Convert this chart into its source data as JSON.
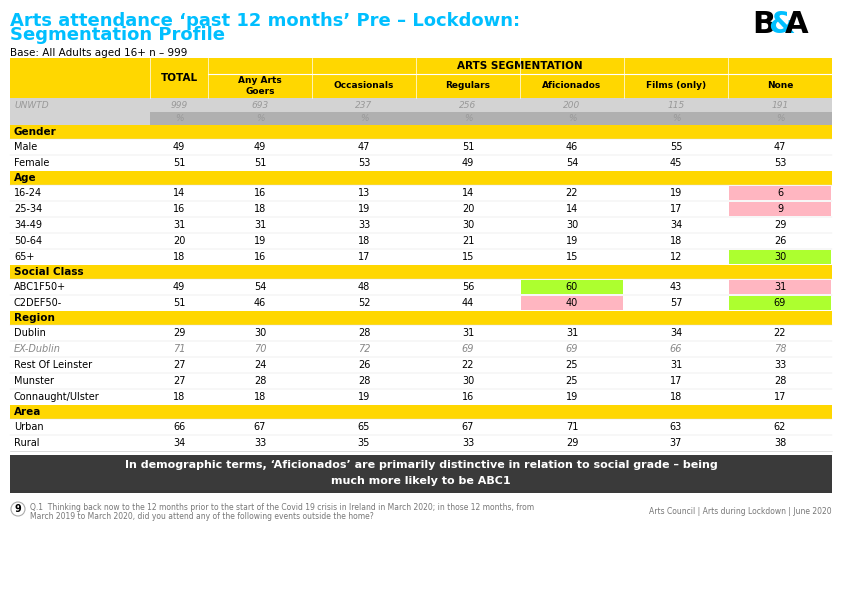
{
  "title_line1": "Arts attendance ‘past 12 months’ Pre – Lockdown:",
  "title_line2": "Segmentation Profile",
  "base_text": "Base: All Adults aged 16+ n – 999",
  "arts_seg_label": "ARTS SEGMENTATION",
  "col_header_total": "TOTAL",
  "col_headers_seg": [
    "Any Arts\nGoers",
    "Occasionals",
    "Regulars",
    "Aficionados",
    "Films (only)",
    "None"
  ],
  "unwtd_row": [
    "UNWTD",
    "999",
    "693",
    "237",
    "256",
    "200",
    "115",
    "191"
  ],
  "sections": [
    {
      "header": "Gender",
      "rows": [
        {
          "label": "Male",
          "values": [
            "49",
            "49",
            "47",
            "51",
            "46",
            "55",
            "47"
          ],
          "italic": false,
          "highlights": {}
        },
        {
          "label": "Female",
          "values": [
            "51",
            "51",
            "53",
            "49",
            "54",
            "45",
            "53"
          ],
          "italic": false,
          "highlights": {}
        }
      ]
    },
    {
      "header": "Age",
      "rows": [
        {
          "label": "16-24",
          "values": [
            "14",
            "16",
            "13",
            "14",
            "22",
            "19",
            "6"
          ],
          "italic": false,
          "highlights": {
            "6": "pink"
          }
        },
        {
          "label": "25-34",
          "values": [
            "16",
            "18",
            "19",
            "20",
            "14",
            "17",
            "9"
          ],
          "italic": false,
          "highlights": {
            "6": "pink"
          }
        },
        {
          "label": "34-49",
          "values": [
            "31",
            "31",
            "33",
            "30",
            "30",
            "34",
            "29"
          ],
          "italic": false,
          "highlights": {}
        },
        {
          "label": "50-64",
          "values": [
            "20",
            "19",
            "18",
            "21",
            "19",
            "18",
            "26"
          ],
          "italic": false,
          "highlights": {}
        },
        {
          "label": "65+",
          "values": [
            "18",
            "16",
            "17",
            "15",
            "15",
            "12",
            "30"
          ],
          "italic": false,
          "highlights": {
            "6": "green"
          }
        }
      ]
    },
    {
      "header": "Social Class",
      "rows": [
        {
          "label": "ABC1F50+",
          "values": [
            "49",
            "54",
            "48",
            "56",
            "60",
            "43",
            "31"
          ],
          "italic": false,
          "highlights": {
            "4": "green",
            "6": "pink"
          }
        },
        {
          "label": "C2DEF50-",
          "values": [
            "51",
            "46",
            "52",
            "44",
            "40",
            "57",
            "69"
          ],
          "italic": false,
          "highlights": {
            "4": "pink",
            "6": "green"
          }
        }
      ]
    },
    {
      "header": "Region",
      "rows": [
        {
          "label": "Dublin",
          "values": [
            "29",
            "30",
            "28",
            "31",
            "31",
            "34",
            "22"
          ],
          "italic": false,
          "highlights": {}
        },
        {
          "label": "EX-Dublin",
          "values": [
            "71",
            "70",
            "72",
            "69",
            "69",
            "66",
            "78"
          ],
          "italic": true,
          "highlights": {}
        },
        {
          "label": "Rest Of Leinster",
          "values": [
            "27",
            "24",
            "26",
            "22",
            "25",
            "31",
            "33"
          ],
          "italic": false,
          "highlights": {}
        },
        {
          "label": "Munster",
          "values": [
            "27",
            "28",
            "28",
            "30",
            "25",
            "17",
            "28"
          ],
          "italic": false,
          "highlights": {}
        },
        {
          "label": "Connaught/Ulster",
          "values": [
            "18",
            "18",
            "19",
            "16",
            "19",
            "18",
            "17"
          ],
          "italic": false,
          "highlights": {}
        }
      ]
    },
    {
      "header": "Area",
      "rows": [
        {
          "label": "Urban",
          "values": [
            "66",
            "67",
            "65",
            "67",
            "71",
            "63",
            "62"
          ],
          "italic": false,
          "highlights": {}
        },
        {
          "label": "Rural",
          "values": [
            "34",
            "33",
            "35",
            "33",
            "29",
            "37",
            "38"
          ],
          "italic": false,
          "highlights": {}
        }
      ]
    }
  ],
  "footer_bold1": "In demographic terms, ‘Aficionados’ are primarily distinctive in relation to social grade – being",
  "footer_bold2": "much more likely to be ABC1",
  "footer_note1": "Q.1  Thinking back now to the 12 months prior to the start of the Covid 19 crisis in Ireland in March 2020; in those 12 months, from",
  "footer_note2": "March 2019 to March 2020, did you attend any of the following events outside the home?",
  "page_num": "9",
  "footer_right": "Arts Council | Arts during Lockdown | June 2020",
  "yellow": "#FFD700",
  "light_gray": "#D3D3D3",
  "mid_gray": "#B0B0B0",
  "pink": "#FFB6C1",
  "green": "#ADFF2F",
  "dark_footer_bg": "#3A3A3A",
  "white": "#FFFFFF",
  "cyan_title": "#00BFFF",
  "italic_color": "#888888",
  "unwtd_color": "#999999"
}
